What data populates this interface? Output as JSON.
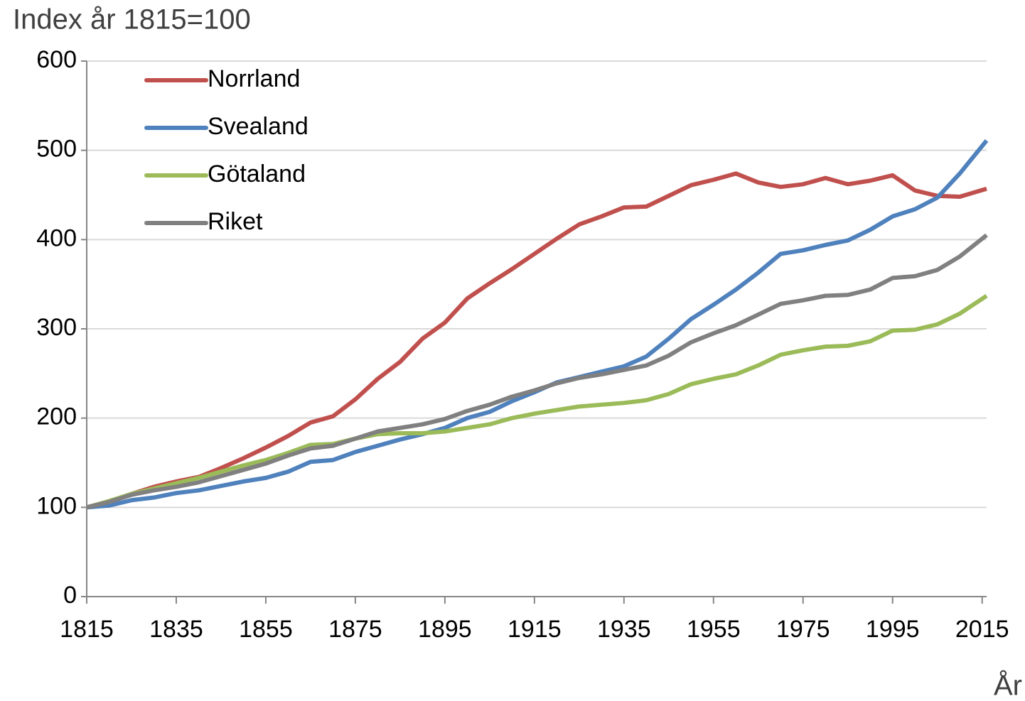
{
  "chart_data": {
    "type": "line",
    "title": "Index år 1815=100",
    "x_label": "År",
    "x": [
      1815,
      1820,
      1825,
      1830,
      1835,
      1840,
      1845,
      1850,
      1855,
      1860,
      1865,
      1870,
      1875,
      1880,
      1885,
      1890,
      1895,
      1900,
      1905,
      1910,
      1915,
      1920,
      1925,
      1930,
      1935,
      1940,
      1945,
      1950,
      1955,
      1960,
      1965,
      1970,
      1975,
      1980,
      1985,
      1990,
      1995,
      2000,
      2005,
      2010,
      2016
    ],
    "series": [
      {
        "name": "Norrland",
        "color": "#c0504d",
        "values": [
          100,
          106,
          115,
          123,
          129,
          134,
          144,
          155,
          167,
          180,
          195,
          202,
          221,
          244,
          263,
          289,
          307,
          334,
          351,
          367,
          384,
          401,
          417,
          426,
          436,
          437,
          449,
          461,
          467,
          474,
          464,
          459,
          462,
          469,
          462,
          466,
          472,
          455,
          449,
          448,
          457
        ]
      },
      {
        "name": "Svealand",
        "color": "#4f81bd",
        "values": [
          100,
          102,
          108,
          111,
          116,
          119,
          124,
          129,
          133,
          140,
          151,
          153,
          162,
          169,
          176,
          182,
          189,
          200,
          207,
          219,
          229,
          240,
          246,
          252,
          258,
          269,
          289,
          311,
          327,
          344,
          363,
          384,
          388,
          394,
          399,
          411,
          426,
          434,
          447,
          474,
          511
        ]
      },
      {
        "name": "Götaland",
        "color": "#9bbb59",
        "values": [
          100,
          107,
          115,
          121,
          127,
          133,
          140,
          147,
          153,
          161,
          170,
          171,
          177,
          182,
          183,
          183,
          185,
          189,
          193,
          200,
          205,
          209,
          213,
          215,
          217,
          220,
          227,
          238,
          244,
          249,
          259,
          271,
          276,
          280,
          281,
          286,
          298,
          299,
          305,
          317,
          337
        ]
      },
      {
        "name": "Riket",
        "color": "#808080",
        "values": [
          100,
          106,
          114,
          119,
          123,
          128,
          135,
          142,
          149,
          158,
          166,
          169,
          177,
          185,
          189,
          193,
          199,
          208,
          215,
          224,
          231,
          239,
          245,
          249,
          254,
          259,
          270,
          285,
          295,
          304,
          316,
          328,
          332,
          337,
          338,
          344,
          357,
          359,
          366,
          381,
          405
        ]
      }
    ],
    "xlim": [
      1815,
      2016
    ],
    "xticks": [
      1815,
      1835,
      1855,
      1875,
      1895,
      1915,
      1935,
      1955,
      1975,
      1995,
      2015
    ],
    "ylim": [
      0,
      600
    ],
    "yticks": [
      0,
      100,
      200,
      300,
      400,
      500,
      600
    ],
    "grid": true,
    "legend": "top-left"
  }
}
